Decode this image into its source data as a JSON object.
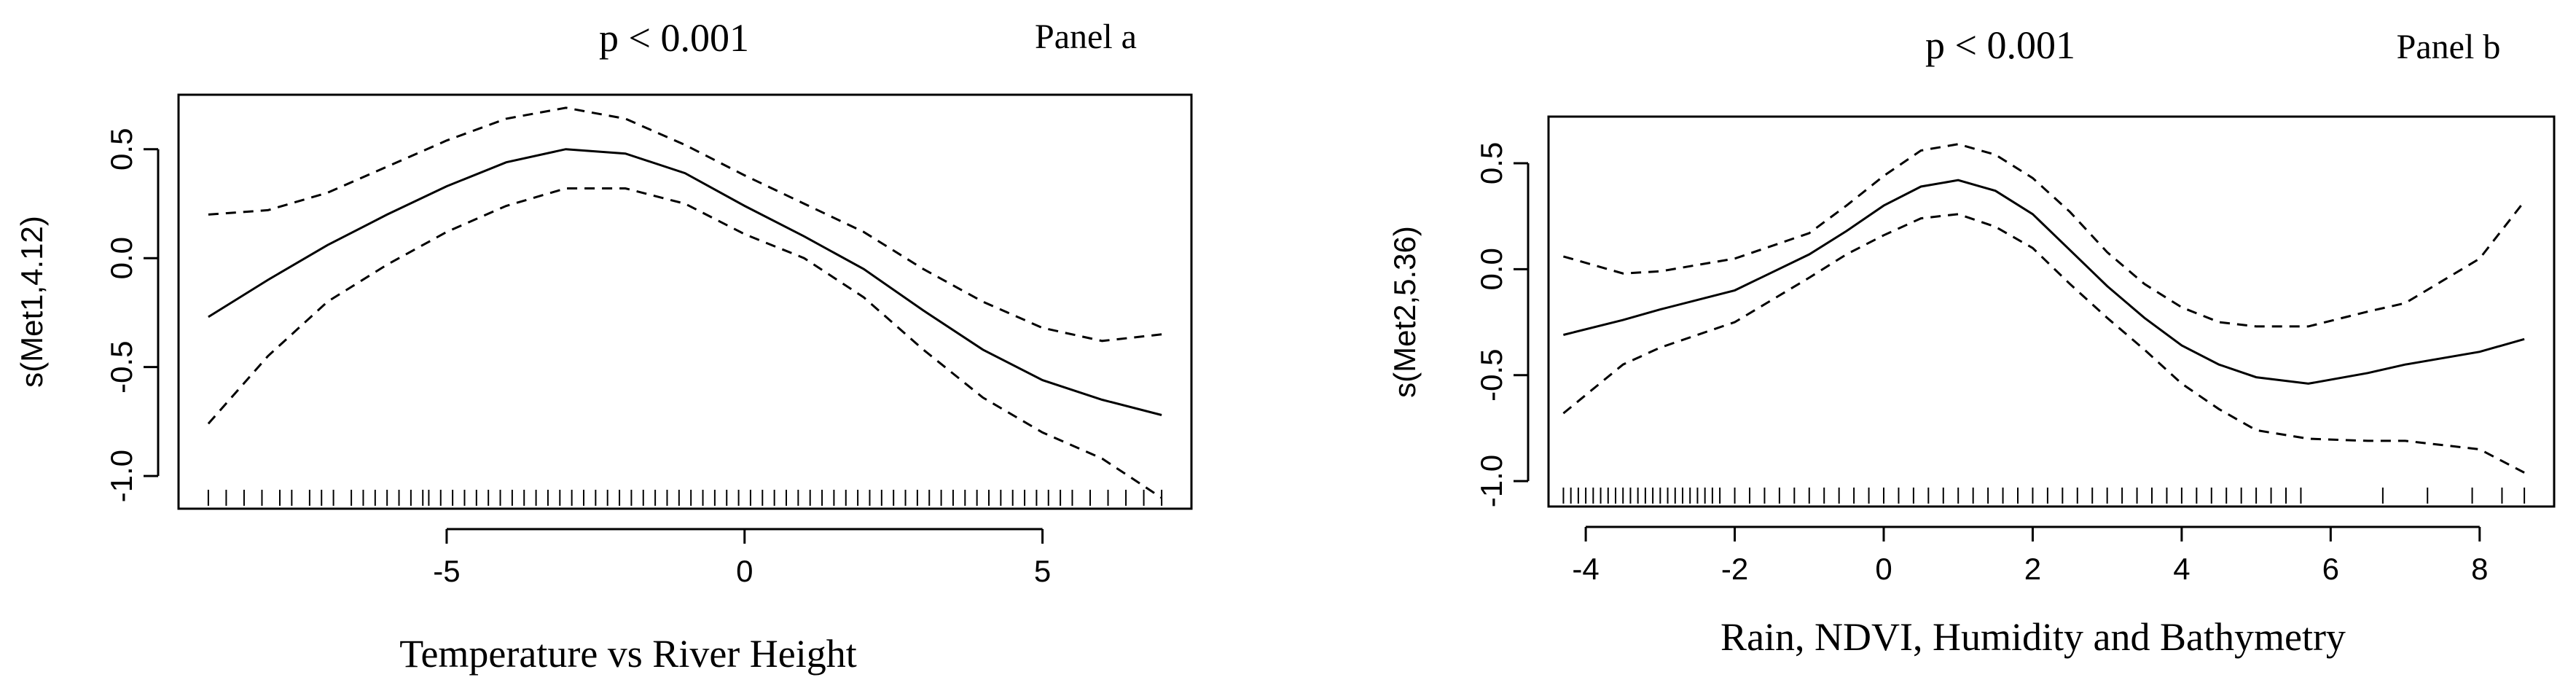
{
  "chart_data": [
    {
      "type": "line",
      "panel_label": "Panel a",
      "annotation": "p < 0.001",
      "xlabel": "Temperature vs River Height",
      "ylabel": "s(Met1,4.12)",
      "xlim": [
        -9.5,
        7.5
      ],
      "ylim": [
        -1.15,
        0.75
      ],
      "xticks": [
        -5,
        0,
        5
      ],
      "xtick_labels": [
        "-5",
        "0",
        "5"
      ],
      "yticks": [
        -1.0,
        -0.5,
        0.0,
        0.5
      ],
      "ytick_labels": [
        "-1.0",
        "-0.5",
        "0.0",
        "0.5"
      ],
      "grid": false,
      "series": [
        {
          "role": "fit",
          "style": "solid",
          "x": [
            -9.0,
            -8.0,
            -7.0,
            -6.0,
            -5.0,
            -4.0,
            -3.0,
            -2.0,
            -1.0,
            0.0,
            1.0,
            2.0,
            3.0,
            4.0,
            5.0,
            6.0,
            7.0
          ],
          "y": [
            -0.27,
            -0.1,
            0.06,
            0.2,
            0.33,
            0.44,
            0.5,
            0.48,
            0.39,
            0.24,
            0.1,
            -0.05,
            -0.24,
            -0.42,
            -0.56,
            -0.65,
            -0.72
          ]
        },
        {
          "role": "upper confidence band",
          "style": "dashed",
          "x": [
            -9.0,
            -8.0,
            -7.0,
            -6.0,
            -5.0,
            -4.0,
            -3.0,
            -2.0,
            -1.0,
            0.0,
            1.0,
            2.0,
            3.0,
            4.0,
            5.0,
            6.0,
            7.0
          ],
          "y": [
            0.2,
            0.22,
            0.3,
            0.42,
            0.54,
            0.64,
            0.69,
            0.64,
            0.52,
            0.38,
            0.25,
            0.12,
            -0.05,
            -0.2,
            -0.32,
            -0.38,
            -0.35
          ]
        },
        {
          "role": "lower confidence band",
          "style": "dashed",
          "x": [
            -9.0,
            -8.0,
            -7.0,
            -6.0,
            -5.0,
            -4.0,
            -3.0,
            -2.0,
            -1.0,
            0.0,
            1.0,
            2.0,
            3.0,
            4.0,
            5.0,
            6.0,
            7.0
          ],
          "y": [
            -0.76,
            -0.45,
            -0.2,
            -0.03,
            0.12,
            0.24,
            0.32,
            0.32,
            0.25,
            0.11,
            0.0,
            -0.18,
            -0.42,
            -0.64,
            -0.8,
            -0.92,
            -1.1
          ]
        }
      ],
      "rug": [
        -9.0,
        -8.7,
        -8.4,
        -8.1,
        -7.8,
        -7.6,
        -7.3,
        -7.1,
        -6.9,
        -6.6,
        -6.4,
        -6.2,
        -6.0,
        -5.8,
        -5.6,
        -5.4,
        -5.3,
        -5.1,
        -4.9,
        -4.7,
        -4.5,
        -4.3,
        -4.1,
        -3.9,
        -3.7,
        -3.5,
        -3.3,
        -3.1,
        -2.9,
        -2.7,
        -2.5,
        -2.3,
        -2.1,
        -1.9,
        -1.7,
        -1.5,
        -1.3,
        -1.1,
        -0.9,
        -0.7,
        -0.5,
        -0.3,
        -0.1,
        0.1,
        0.3,
        0.5,
        0.7,
        0.9,
        1.1,
        1.3,
        1.5,
        1.7,
        1.9,
        2.1,
        2.3,
        2.5,
        2.7,
        2.9,
        3.1,
        3.3,
        3.5,
        3.7,
        3.9,
        4.1,
        4.3,
        4.5,
        4.7,
        4.9,
        5.1,
        5.3,
        5.5,
        5.8,
        6.1,
        6.4,
        6.7,
        7.0
      ]
    },
    {
      "type": "line",
      "panel_label": "Panel b",
      "annotation": "p < 0.001",
      "xlabel": "Rain, NDVI, Humidity and Bathymetry",
      "ylabel": "s(Met2,5.36)",
      "xlim": [
        -4.5,
        9.0
      ],
      "ylim": [
        -1.12,
        0.72
      ],
      "xticks": [
        -4,
        -2,
        0,
        2,
        4,
        6,
        8
      ],
      "xtick_labels": [
        "-4",
        "-2",
        "0",
        "2",
        "4",
        "6",
        "8"
      ],
      "yticks": [
        -1.0,
        -0.5,
        0.0,
        0.5
      ],
      "ytick_labels": [
        "-1.0",
        "-0.5",
        "0.0",
        "0.5"
      ],
      "grid": false,
      "series": [
        {
          "role": "fit",
          "style": "solid",
          "x": [
            -4.3,
            -3.5,
            -3.0,
            -2.0,
            -1.0,
            -0.5,
            0.0,
            0.5,
            1.0,
            1.5,
            2.0,
            2.5,
            3.0,
            3.5,
            4.0,
            4.5,
            5.0,
            5.7,
            6.5,
            7.0,
            8.0,
            8.6
          ],
          "y": [
            -0.31,
            -0.24,
            -0.19,
            -0.1,
            0.07,
            0.18,
            0.3,
            0.39,
            0.42,
            0.37,
            0.26,
            0.09,
            -0.08,
            -0.23,
            -0.36,
            -0.45,
            -0.51,
            -0.54,
            -0.49,
            -0.45,
            -0.39,
            -0.33
          ]
        },
        {
          "role": "upper confidence band",
          "style": "dashed",
          "x": [
            -4.3,
            -3.5,
            -3.0,
            -2.0,
            -1.0,
            -0.5,
            0.0,
            0.5,
            1.0,
            1.5,
            2.0,
            2.5,
            3.0,
            3.5,
            4.0,
            4.5,
            5.0,
            5.7,
            6.5,
            7.0,
            8.0,
            8.6
          ],
          "y": [
            0.06,
            -0.02,
            -0.01,
            0.05,
            0.17,
            0.3,
            0.44,
            0.56,
            0.59,
            0.54,
            0.43,
            0.27,
            0.08,
            -0.07,
            -0.18,
            -0.25,
            -0.27,
            -0.27,
            -0.2,
            -0.16,
            0.05,
            0.32
          ]
        },
        {
          "role": "lower confidence band",
          "style": "dashed",
          "x": [
            -4.3,
            -3.5,
            -3.0,
            -2.0,
            -1.0,
            -0.5,
            0.0,
            0.5,
            1.0,
            1.5,
            2.0,
            2.5,
            3.0,
            3.5,
            4.0,
            4.5,
            5.0,
            5.7,
            6.5,
            7.0,
            8.0,
            8.6
          ],
          "y": [
            -0.68,
            -0.45,
            -0.37,
            -0.25,
            -0.04,
            0.07,
            0.16,
            0.24,
            0.26,
            0.2,
            0.1,
            -0.07,
            -0.23,
            -0.38,
            -0.54,
            -0.66,
            -0.76,
            -0.8,
            -0.81,
            -0.81,
            -0.85,
            -0.96
          ]
        }
      ],
      "rug": [
        -4.3,
        -4.2,
        -4.1,
        -4.0,
        -3.9,
        -3.8,
        -3.7,
        -3.6,
        -3.5,
        -3.4,
        -3.3,
        -3.2,
        -3.1,
        -3.0,
        -2.9,
        -2.8,
        -2.7,
        -2.6,
        -2.5,
        -2.4,
        -2.3,
        -2.2,
        -2.0,
        -1.8,
        -1.6,
        -1.4,
        -1.2,
        -1.0,
        -0.8,
        -0.6,
        -0.4,
        -0.2,
        0.0,
        0.2,
        0.4,
        0.6,
        0.8,
        1.0,
        1.2,
        1.4,
        1.6,
        1.8,
        2.0,
        2.2,
        2.4,
        2.6,
        2.8,
        3.0,
        3.2,
        3.4,
        3.6,
        3.8,
        4.0,
        4.2,
        4.4,
        4.6,
        4.8,
        5.0,
        5.2,
        5.4,
        5.6,
        6.7,
        7.3,
        7.9,
        8.3,
        8.6
      ]
    }
  ]
}
